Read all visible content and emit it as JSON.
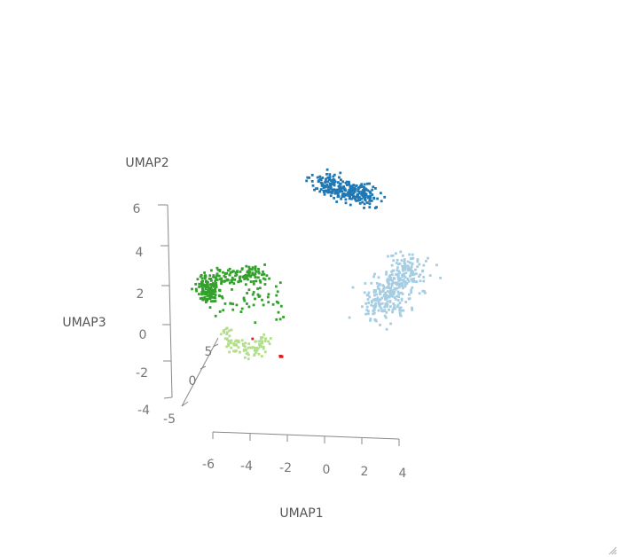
{
  "chart_data": {
    "type": "scatter",
    "projection": "3d",
    "axes": {
      "x": {
        "title": "UMAP1",
        "ticks": [
          "-6",
          "-4",
          "-2",
          "0",
          "2",
          "4"
        ],
        "range": [
          -6.5,
          4.5
        ]
      },
      "y": {
        "title": "UMAP2",
        "ticks": [
          "-5",
          "0",
          "5"
        ],
        "range": [
          -6,
          7
        ]
      },
      "z": {
        "title": "UMAP3",
        "ticks": [
          "-4",
          "-2",
          "0",
          "2",
          "4",
          "6"
        ],
        "range": [
          -4.5,
          6.5
        ]
      }
    },
    "grid": false,
    "legend": "none",
    "clusters": [
      {
        "color": "#33a02c",
        "center_umap1": -3.8,
        "center_umap3": 2.4,
        "n_points": 300
      },
      {
        "color": "#b2df8a",
        "center_umap1": -3.7,
        "center_umap3": -1.0,
        "n_points": 90
      },
      {
        "color": "#1f78b4",
        "center_umap1": 0.9,
        "center_umap3": 3.3,
        "n_points": 260
      },
      {
        "color": "#a6cee3",
        "center_umap1": 2.1,
        "center_umap3": 1.2,
        "n_points": 340
      },
      {
        "color": "#e31a1c",
        "center_umap1": -3.5,
        "center_umap3": -0.8,
        "n_points": 6
      }
    ]
  }
}
